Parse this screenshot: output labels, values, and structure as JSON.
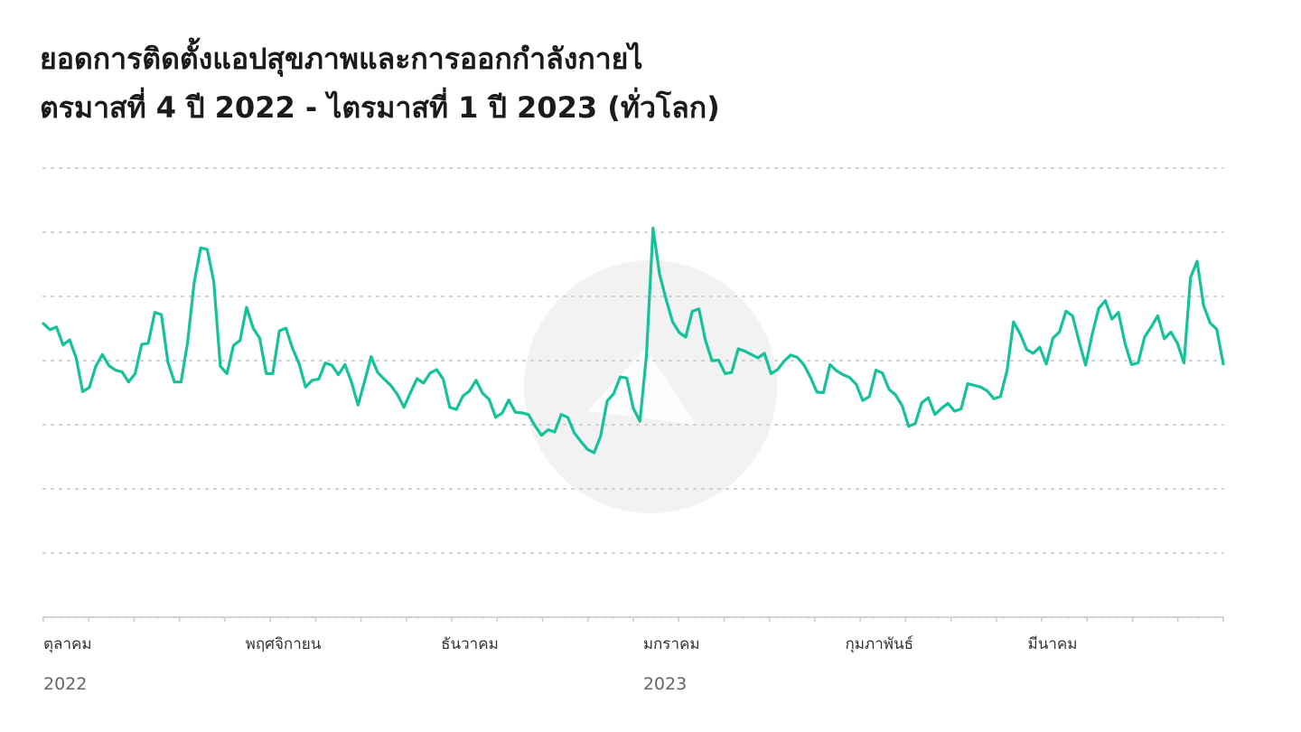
{
  "title": {
    "line1": "ยอดการติดตั้งแอปสุขภาพและการออกกำลังกายไ",
    "line2": "ตรมาสที่ 4 ปี 2022 - ไตรมาสที่ 1 ปี 2023 (ทั่วโลก)"
  },
  "colors": {
    "line": "#14c39a",
    "grid": "#cfcfcf",
    "axis": "#cccccc",
    "watermark": "#f2f2f2"
  },
  "chart_data": {
    "type": "line",
    "title": "ยอดการติดตั้งแอปสุขภาพและการออกกำลังกายไตรมาสที่ 4 ปี 2022 - ไตรมาสที่ 1 ปี 2023 (ทั่วโลก)",
    "xlabel": "",
    "ylabel": "",
    "grid": true,
    "y_gridlines": 9,
    "y_tick_labels_visible": false,
    "ylim": [
      0,
      8
    ],
    "x_range": [
      "2022-10-01",
      "2023-03-31"
    ],
    "month_labels": [
      {
        "label": "ตุลาคม",
        "date": "2022-10-01",
        "year": "2022"
      },
      {
        "label": "พฤศจิกายน",
        "date": "2022-11-01"
      },
      {
        "label": "ธันวาคม",
        "date": "2022-12-01"
      },
      {
        "label": "มกราคม",
        "date": "2023-01-01",
        "year": "2023"
      },
      {
        "label": "กุมภาพันธ์",
        "date": "2023-02-01"
      },
      {
        "label": "มีนาคม",
        "date": "2023-03-01"
      }
    ],
    "series": [
      {
        "values": [
          5.23,
          5.12,
          5.17,
          4.85,
          4.94,
          4.62,
          4.02,
          4.09,
          4.47,
          4.68,
          4.48,
          4.4,
          4.37,
          4.19,
          4.34,
          4.86,
          4.88,
          5.43,
          5.39,
          4.54,
          4.19,
          4.19,
          4.89,
          5.96,
          6.58,
          6.55,
          5.98,
          4.47,
          4.34,
          4.84,
          4.93,
          5.52,
          5.15,
          4.97,
          4.34,
          4.34,
          5.1,
          5.15,
          4.79,
          4.52,
          4.1,
          4.22,
          4.24,
          4.53,
          4.49,
          4.32,
          4.5,
          4.19,
          3.78,
          4.2,
          4.64,
          4.36,
          4.24,
          4.13,
          3.97,
          3.74,
          4.0,
          4.25,
          4.17,
          4.35,
          4.41,
          4.24,
          3.74,
          3.7,
          3.94,
          4.03,
          4.22,
          3.99,
          3.88,
          3.56,
          3.64,
          3.87,
          3.65,
          3.64,
          3.61,
          3.41,
          3.24,
          3.34,
          3.3,
          3.61,
          3.56,
          3.28,
          3.13,
          2.99,
          2.93,
          3.22,
          3.85,
          3.98,
          4.28,
          4.26,
          3.72,
          3.49,
          4.66,
          6.93,
          6.11,
          5.66,
          5.26,
          5.07,
          4.99,
          5.45,
          5.49,
          4.93,
          4.57,
          4.58,
          4.34,
          4.36,
          4.78,
          4.74,
          4.68,
          4.62,
          4.7,
          4.34,
          4.41,
          4.56,
          4.67,
          4.63,
          4.5,
          4.28,
          4.01,
          4.0,
          4.5,
          4.39,
          4.32,
          4.27,
          4.15,
          3.86,
          3.93,
          4.4,
          4.35,
          4.06,
          3.96,
          3.77,
          3.4,
          3.45,
          3.82,
          3.91,
          3.61,
          3.72,
          3.81,
          3.67,
          3.71,
          4.16,
          4.13,
          4.1,
          4.03,
          3.89,
          3.93,
          4.39,
          5.26,
          5.05,
          4.77,
          4.7,
          4.81,
          4.51,
          4.97,
          5.08,
          5.45,
          5.37,
          4.91,
          4.49,
          5.04,
          5.5,
          5.64,
          5.31,
          5.43,
          4.88,
          4.5,
          4.53,
          4.99,
          5.17,
          5.37,
          4.96,
          5.08,
          4.88,
          4.53,
          6.05,
          6.34,
          5.55,
          5.24,
          5.13,
          4.51
        ]
      }
    ]
  }
}
